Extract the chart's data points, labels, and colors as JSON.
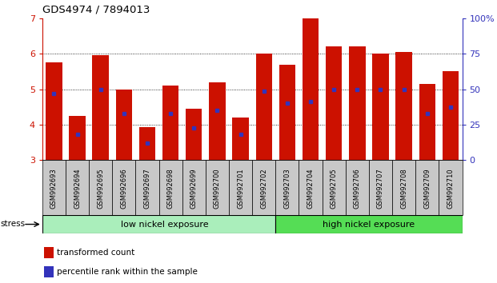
{
  "title": "GDS4974 / 7894013",
  "samples": [
    "GSM992693",
    "GSM992694",
    "GSM992695",
    "GSM992696",
    "GSM992697",
    "GSM992698",
    "GSM992699",
    "GSM992700",
    "GSM992701",
    "GSM992702",
    "GSM992703",
    "GSM992704",
    "GSM992705",
    "GSM992706",
    "GSM992707",
    "GSM992708",
    "GSM992709",
    "GSM992710"
  ],
  "red_heights": [
    5.75,
    4.25,
    5.95,
    5.0,
    3.93,
    5.1,
    4.45,
    5.2,
    4.2,
    6.0,
    5.7,
    7.0,
    6.2,
    6.2,
    6.0,
    6.05,
    5.15,
    5.5
  ],
  "blue_positions": [
    4.88,
    3.72,
    5.0,
    4.32,
    3.47,
    4.32,
    3.9,
    4.4,
    3.72,
    4.95,
    4.6,
    4.65,
    5.0,
    5.0,
    5.0,
    5.0,
    4.3,
    4.5
  ],
  "ymin": 3.0,
  "ymax": 7.0,
  "yticks": [
    3,
    4,
    5,
    6,
    7
  ],
  "right_yticks": [
    0,
    25,
    50,
    75,
    100
  ],
  "right_yticklabels": [
    "0",
    "25",
    "50",
    "75",
    "100%"
  ],
  "bar_color": "#CC1100",
  "dot_color": "#3333BB",
  "group1_label": "low nickel exposure",
  "group2_label": "high nickel exposure",
  "group1_color": "#AAEEBB",
  "group2_color": "#55DD55",
  "group1_count": 10,
  "stress_label": "stress",
  "legend_red": "transformed count",
  "legend_blue": "percentile rank within the sample",
  "bg_color": "#FFFFFF",
  "tick_label_bg": "#C8C8C8",
  "grid_color": "#333333",
  "bar_width": 0.7
}
